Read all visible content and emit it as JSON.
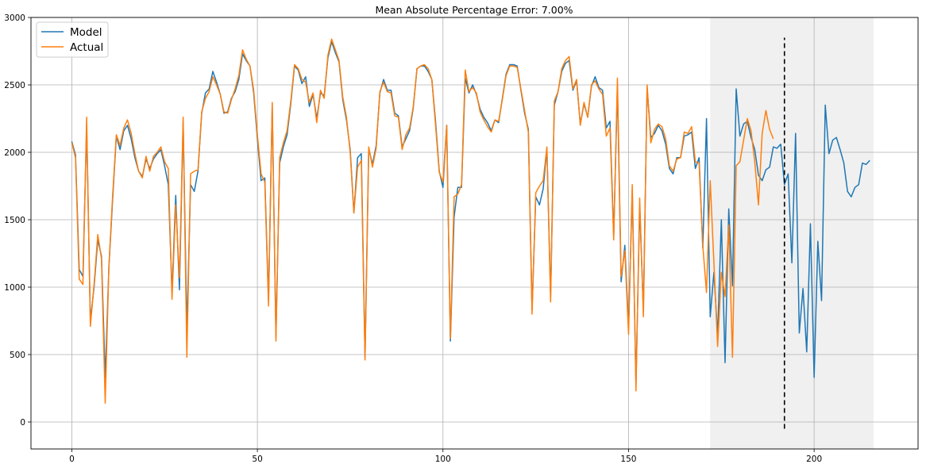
{
  "chart_data": {
    "type": "line",
    "title": "Mean Absolute Percentage Error: 7.00%",
    "xlabel": "",
    "ylabel": "",
    "xlim": [
      -11,
      228
    ],
    "ylim": [
      -200,
      3000
    ],
    "xticks": [
      0,
      50,
      100,
      150,
      200
    ],
    "yticks": [
      0,
      500,
      1000,
      1500,
      2000,
      2500,
      3000
    ],
    "grid": true,
    "legend_position": "top-left",
    "shaded_region": {
      "x_start": 172,
      "x_end": 216,
      "color": "#f0f0f0"
    },
    "vertical_line": {
      "x": 192,
      "y_start": -50,
      "y_end": 2850,
      "style": "dashed",
      "color": "#000000"
    },
    "series": [
      {
        "name": "Model",
        "color": "#1f77b4",
        "x_start": 0,
        "values": [
          2080,
          1980,
          1130,
          1080,
          2200,
          750,
          1000,
          1350,
          1230,
          330,
          1150,
          1650,
          2120,
          2020,
          2160,
          2200,
          2100,
          1960,
          1860,
          1820,
          1950,
          1880,
          1950,
          1990,
          2020,
          1900,
          1760,
          960,
          1680,
          980,
          2230,
          680,
          1760,
          1710,
          1860,
          2290,
          2440,
          2470,
          2600,
          2520,
          2430,
          2290,
          2300,
          2400,
          2450,
          2540,
          2730,
          2680,
          2640,
          2440,
          2100,
          1790,
          1810,
          900,
          2350,
          630,
          1920,
          2040,
          2130,
          2360,
          2640,
          2610,
          2510,
          2560,
          2340,
          2430,
          2250,
          2440,
          2420,
          2700,
          2820,
          2740,
          2670,
          2390,
          2240,
          2020,
          1550,
          1960,
          1990,
          480,
          2030,
          1910,
          2050,
          2440,
          2540,
          2460,
          2460,
          2290,
          2270,
          2040,
          2100,
          2160,
          2330,
          2620,
          2640,
          2640,
          2600,
          2540,
          2230,
          1860,
          1740,
          2200,
          600,
          1520,
          1740,
          1740,
          2550,
          2440,
          2500,
          2430,
          2320,
          2260,
          2220,
          2160,
          2240,
          2220,
          2400,
          2580,
          2650,
          2650,
          2640,
          2460,
          2290,
          2170,
          830,
          1670,
          1610,
          1730,
          2030,
          930,
          2350,
          2450,
          2600,
          2660,
          2680,
          2460,
          2530,
          2210,
          2360,
          2260,
          2490,
          2560,
          2480,
          2460,
          2180,
          2230,
          1380,
          2490,
          1040,
          1310,
          700,
          1720,
          280,
          1600,
          830,
          2480,
          2110,
          2140,
          2200,
          2160,
          2060,
          1880,
          1840,
          1960,
          1960,
          2120,
          2130,
          2150,
          1880,
          1960,
          1290,
          2250,
          780,
          1110,
          640,
          1500,
          440,
          1580,
          1010,
          2470,
          2120,
          2210,
          2230,
          2110,
          2020,
          1830,
          1790,
          1870,
          1890,
          2040,
          2030,
          2060,
          1760,
          1840,
          1180,
          2140,
          660,
          990,
          520,
          1470,
          330,
          1340,
          900,
          2350,
          1990,
          2090,
          2110,
          2020,
          1920,
          1710,
          1670,
          1740,
          1760,
          1920,
          1910,
          1940
        ]
      },
      {
        "name": "Actual",
        "color": "#ff7f0e",
        "x_start": 0,
        "values": [
          2070,
          1960,
          1060,
          1020,
          2260,
          710,
          1020,
          1390,
          1210,
          140,
          1160,
          1680,
          2130,
          2050,
          2180,
          2240,
          2140,
          1990,
          1860,
          1810,
          1970,
          1860,
          1970,
          2000,
          2040,
          1930,
          1880,
          910,
          1610,
          1070,
          2260,
          480,
          1840,
          1860,
          1870,
          2300,
          2400,
          2450,
          2560,
          2500,
          2430,
          2300,
          2290,
          2390,
          2470,
          2570,
          2760,
          2690,
          2640,
          2460,
          2130,
          1840,
          1780,
          860,
          2370,
          600,
          1960,
          2070,
          2160,
          2380,
          2650,
          2620,
          2540,
          2520,
          2370,
          2440,
          2220,
          2460,
          2400,
          2720,
          2840,
          2760,
          2680,
          2410,
          2260,
          2000,
          1550,
          1890,
          1940,
          460,
          2040,
          1890,
          2030,
          2450,
          2520,
          2450,
          2440,
          2270,
          2260,
          2020,
          2130,
          2180,
          2340,
          2620,
          2640,
          2650,
          2620,
          2540,
          2200,
          1850,
          1780,
          2200,
          620,
          1670,
          1690,
          1760,
          2610,
          2450,
          2480,
          2440,
          2300,
          2240,
          2190,
          2150,
          2240,
          2230,
          2390,
          2570,
          2640,
          2640,
          2630,
          2470,
          2310,
          2150,
          800,
          1700,
          1750,
          1790,
          2040,
          890,
          2380,
          2450,
          2620,
          2680,
          2710,
          2470,
          2540,
          2200,
          2370,
          2260,
          2500,
          2530,
          2470,
          2430,
          2120,
          2180,
          1350,
          2550,
          1080,
          1270,
          650,
          1760,
          230,
          1660,
          780,
          2500,
          2070,
          2170,
          2210,
          2190,
          2100,
          1900,
          1860,
          1950,
          1960,
          2150,
          2140,
          2190,
          1930,
          1920,
          1310,
          960,
          1790,
          1180,
          560,
          1110,
          930,
          1460,
          480,
          1900,
          1930,
          2090,
          2250,
          2160,
          1930,
          1610,
          2140,
          2310,
          2170,
          2100
        ]
      }
    ]
  }
}
